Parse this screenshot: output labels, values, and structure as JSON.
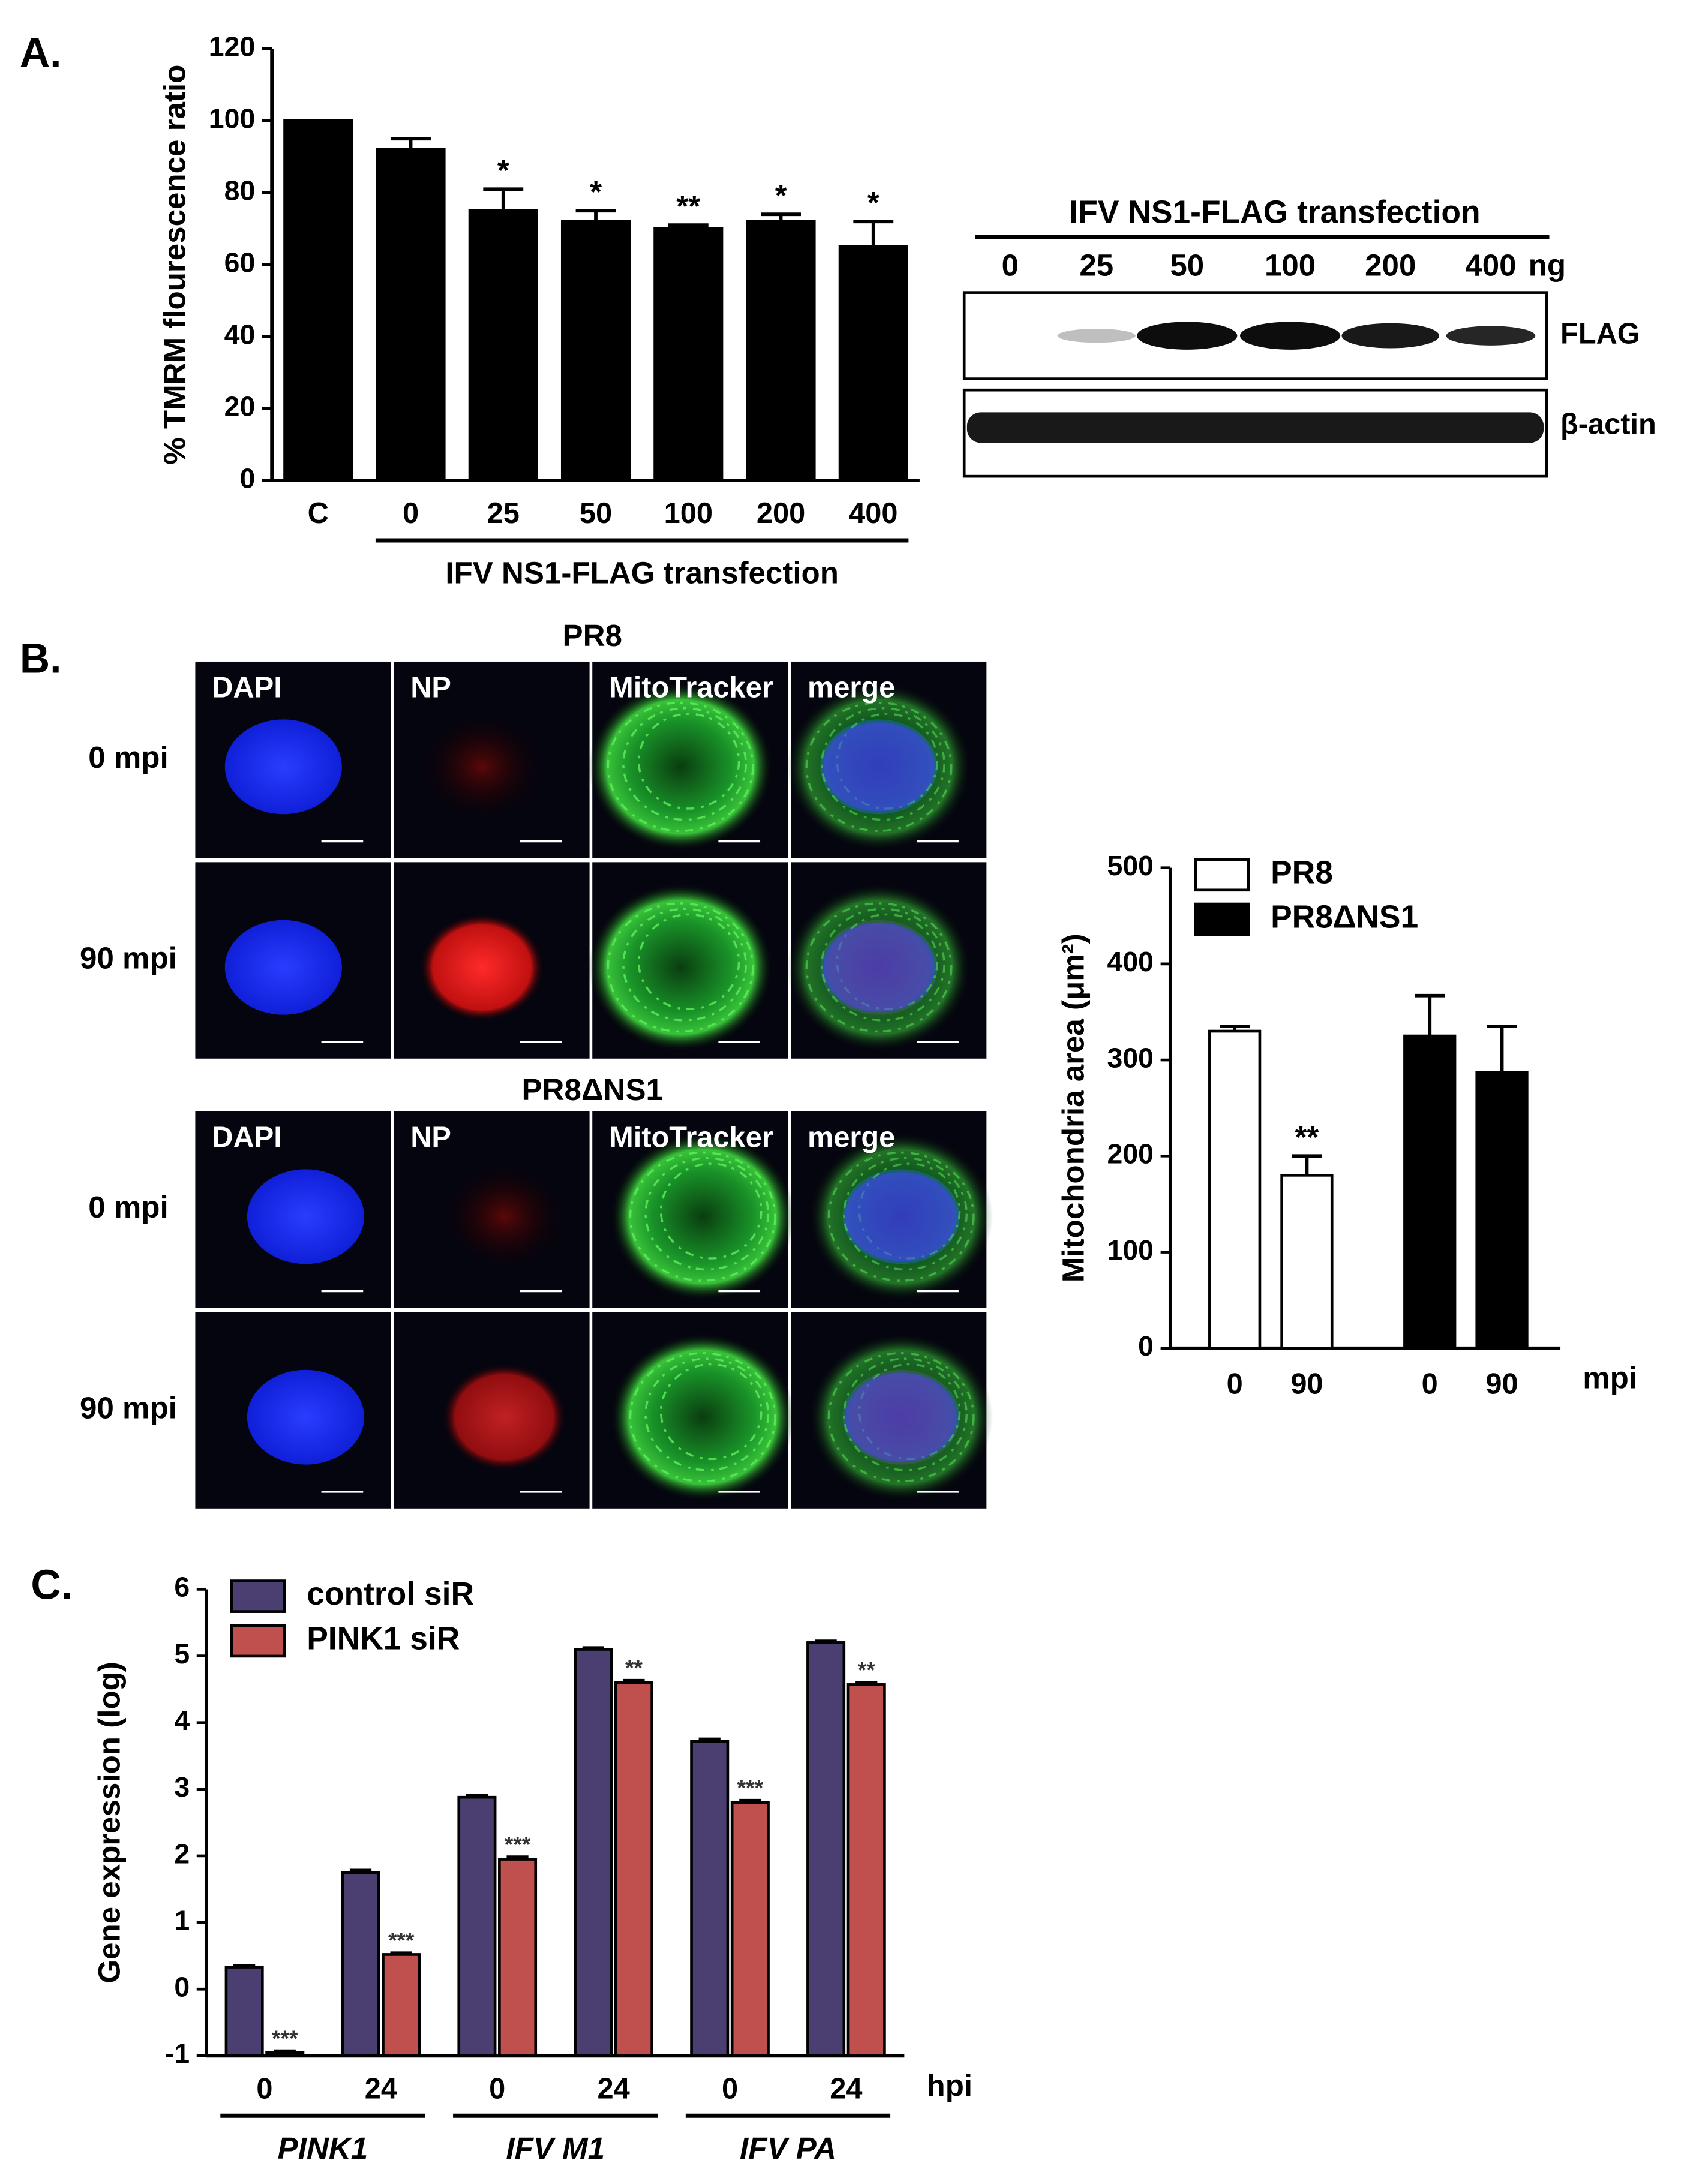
{
  "figure": {
    "panel_labels": [
      "A.",
      "B.",
      "C."
    ]
  },
  "blot": {
    "title": "IFV NS1-FLAG transfection",
    "lanes": [
      "0",
      "25",
      "50",
      "100",
      "200",
      "400"
    ],
    "unit": "ng",
    "rows": [
      "FLAG",
      "β-actin"
    ]
  },
  "microscopy": {
    "channels": [
      "DAPI",
      "NP",
      "MitoTracker",
      "merge"
    ],
    "blocks": [
      {
        "title": "PR8",
        "rows": [
          "0 mpi",
          "90 mpi"
        ]
      },
      {
        "title": "PR8ΔNS1",
        "rows": [
          "0 mpi",
          "90 mpi"
        ]
      }
    ]
  },
  "chart_data": [
    {
      "type": "bar",
      "y_label": "% TMRM flourescence ratio",
      "groups": [
        {
          "categories": [
            "C"
          ]
        },
        {
          "name": "IFV NS1-FLAG transfection",
          "categories": [
            "0",
            "25",
            "50",
            "100",
            "200",
            "400"
          ]
        }
      ],
      "grouping": "category",
      "series": [
        {
          "color": "#000000",
          "values": [
            100,
            92,
            75,
            72,
            70,
            72,
            65
          ],
          "errors": [
            0,
            3,
            6,
            3,
            1,
            2,
            7
          ],
          "labels": [
            null,
            null,
            "*",
            "*",
            "**",
            "*",
            "*"
          ]
        }
      ],
      "ylim": [
        0,
        120
      ],
      "yticks": [
        0,
        20,
        40,
        60,
        80,
        100,
        120
      ]
    },
    {
      "type": "bar",
      "y_label": "Mitochondria area  (μm²)",
      "categories": [
        "0",
        "90"
      ],
      "x_unit": "mpi",
      "grouping": "series",
      "legend": "upper left",
      "series": [
        {
          "name": "PR8",
          "color": "#ffffff",
          "values": [
            330,
            180
          ],
          "errors": [
            5,
            20
          ],
          "labels": [
            null,
            "**"
          ]
        },
        {
          "name": "PR8ΔNS1",
          "color": "#000000",
          "values": [
            325,
            287
          ],
          "errors": [
            42,
            48
          ],
          "labels": [
            null,
            null
          ]
        }
      ],
      "ylim": [
        0,
        500
      ],
      "yticks": [
        0,
        100,
        200,
        300,
        400,
        500
      ]
    },
    {
      "type": "bar",
      "y_label": "Gene expression (log)",
      "groups": [
        {
          "name": "PINK1",
          "categories": [
            "0",
            "24"
          ]
        },
        {
          "name": "IFV M1",
          "categories": [
            "0",
            "24"
          ]
        },
        {
          "name": "IFV PA",
          "categories": [
            "0",
            "24"
          ]
        }
      ],
      "group_font_style": "italic",
      "x_unit": "hpi",
      "grouping": "category",
      "legend": "upper left",
      "series": [
        {
          "name": "control siR",
          "color": "#4b3f72",
          "values": [
            0.33,
            1.75,
            2.88,
            5.1,
            3.72,
            5.2
          ],
          "errors": [
            0.02,
            0.03,
            0.03,
            0.02,
            0.03,
            0.02
          ],
          "labels": [
            null,
            null,
            null,
            null,
            null,
            null
          ]
        },
        {
          "name": "PINK1 siR",
          "color": "#c0504d",
          "values": [
            -0.95,
            0.52,
            1.95,
            4.6,
            2.8,
            4.57
          ],
          "errors": [
            0.02,
            0.02,
            0.03,
            0.03,
            0.03,
            0.03
          ],
          "labels": [
            "***",
            "***",
            "***",
            "**",
            "***",
            "**"
          ]
        }
      ],
      "ylim": [
        -1,
        6
      ],
      "yticks": [
        -1,
        0,
        1,
        2,
        3,
        4,
        5,
        6
      ]
    }
  ]
}
